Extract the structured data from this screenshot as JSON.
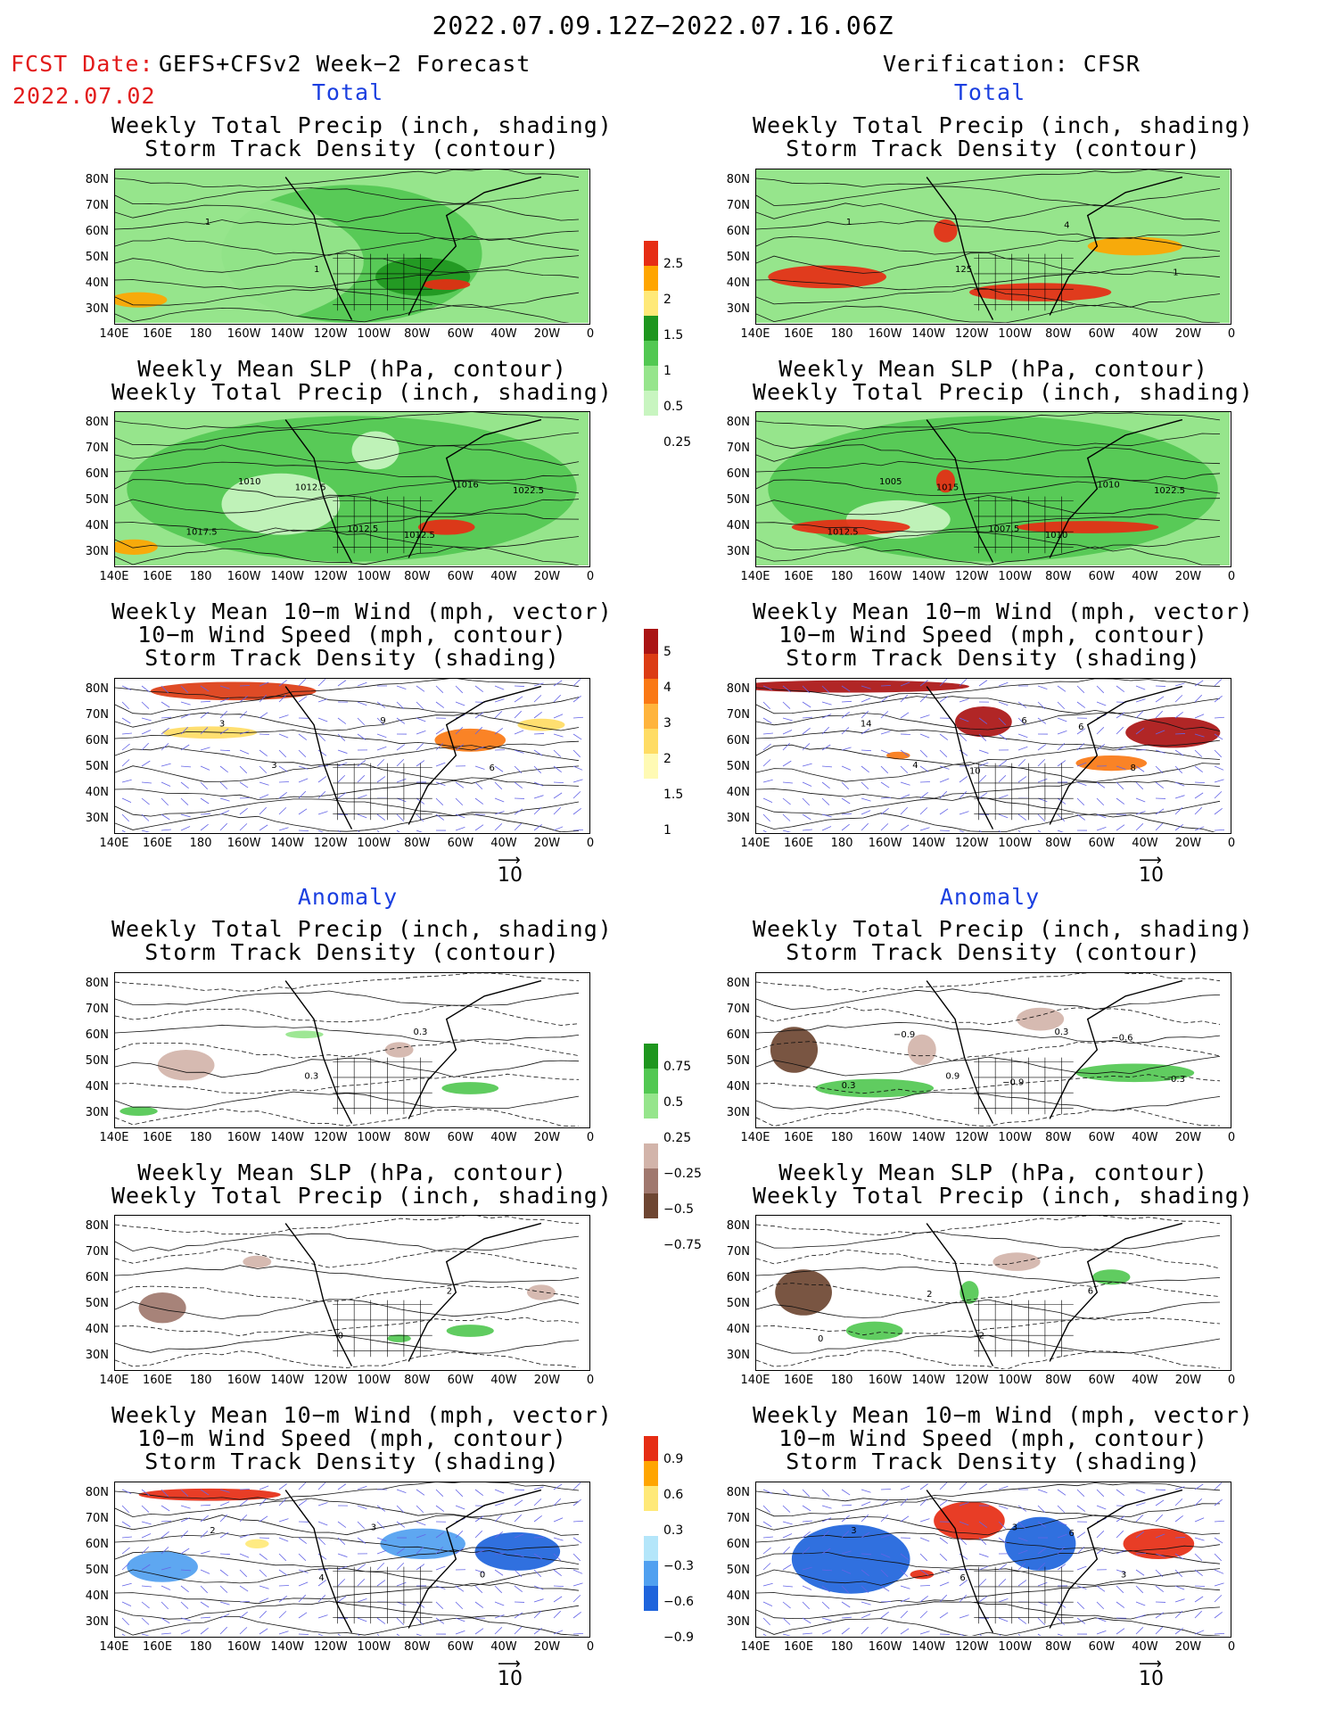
{
  "header": {
    "title": "2022.07.09.12Z−2022.07.16.06Z",
    "fcst_prefix": "FCST Date:",
    "fcst_model": "GEFS+CFSv2 Week−2 Forecast",
    "fcst_date": "2022.07.02",
    "verification": "Verification: CFSR"
  },
  "sections": {
    "total": "Total",
    "anomaly": "Anomaly"
  },
  "titles": {
    "precip_track": [
      "Weekly Total Precip (inch, shading)",
      "Storm Track Density (contour)"
    ],
    "slp_precip": [
      "Weekly Mean SLP (hPa, contour)",
      "Weekly Total Precip (inch, shading)"
    ],
    "wind": [
      "Weekly Mean 10−m Wind (mph, vector)",
      "10−m Wind Speed (mph, contour)",
      "Storm Track Density (shading)"
    ]
  },
  "axes": {
    "lat_labels": [
      "80N",
      "70N",
      "60N",
      "50N",
      "40N",
      "30N"
    ],
    "lon_labels": [
      "140E",
      "160E",
      "180",
      "160W",
      "140W",
      "120W",
      "100W",
      "80W",
      "60W",
      "40W",
      "20W",
      "0"
    ]
  },
  "vector_ref": "10",
  "colors": {
    "precip": [
      "#c8f5c0",
      "#96e58c",
      "#52c852",
      "#1e961e",
      "#ffe978",
      "#ffa500",
      "#e62d14"
    ],
    "track": [
      "#fffab4",
      "#ffdc64",
      "#ffb43c",
      "#fa7814",
      "#dc3c14",
      "#aa1414"
    ],
    "precip_anom": [
      "#6e4632",
      "#a0786e",
      "#d2b4aa",
      "#ffffff",
      "#96e58c",
      "#52c852",
      "#1e961e"
    ],
    "track_anom": [
      "#1e64dc",
      "#50a0f0",
      "#b4e6fa",
      "#ffffff",
      "#ffe978",
      "#ffa500",
      "#e62d14"
    ]
  },
  "colorbars": {
    "precip": [
      "2.5",
      "2",
      "1.5",
      "1",
      "0.5",
      "0.25"
    ],
    "track": [
      "5",
      "4",
      "3",
      "2",
      "1.5",
      "1"
    ],
    "precip_anom": [
      "0.75",
      "0.5",
      "0.25",
      "−0.25",
      "−0.5",
      "−0.75"
    ],
    "track_anom": [
      "0.9",
      "0.6",
      "0.3",
      "−0.3",
      "−0.6",
      "−0.9"
    ]
  },
  "contour_labels": {
    "l_p1": [
      "1",
      "1"
    ],
    "r_p1": [
      "1",
      "125",
      "4",
      "1"
    ],
    "l_p2": [
      "1010",
      "1012.5",
      "1016",
      "1017.5",
      "1012.5",
      "1012.5",
      "1022.5"
    ],
    "r_p2": [
      "1005",
      "1007.5",
      "1010",
      "1012.5",
      "1015",
      "1010",
      "1022.5"
    ],
    "l_p3": [
      "3",
      "9",
      "6",
      "3"
    ],
    "r_p3": [
      "4",
      "6",
      "8",
      "14",
      "10",
      "6"
    ],
    "l_p4": [
      "0.3",
      "0.3"
    ],
    "r_p4": [
      "0.9",
      "0.3",
      "−0.3",
      "−0.9",
      "−0.9",
      "−0.6",
      "0.3"
    ],
    "l_p5": [
      "0",
      "2"
    ],
    "r_p5": [
      "2",
      "6",
      "0",
      "2"
    ],
    "l_p6": [
      "3",
      "0",
      "2",
      "4"
    ],
    "r_p6": [
      "3",
      "3",
      "3",
      "6",
      "6"
    ]
  }
}
